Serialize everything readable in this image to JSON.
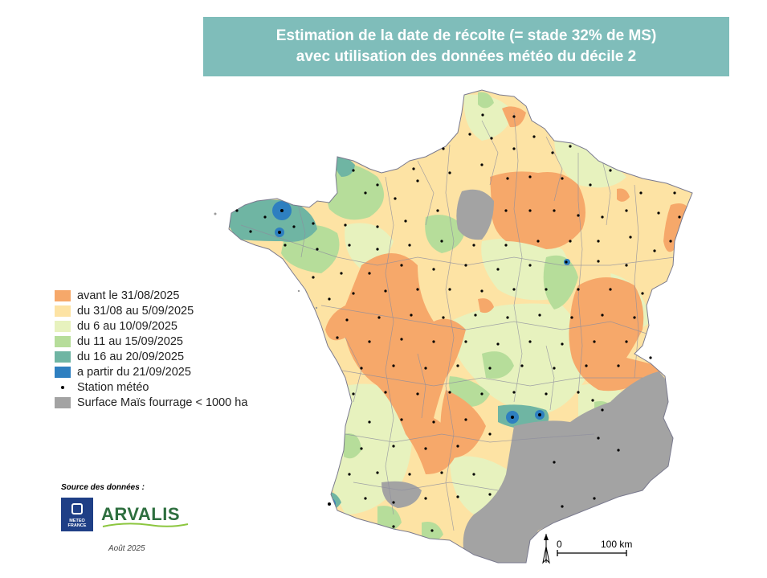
{
  "title": {
    "line1": "Estimation de la date de récolte (= stade 32% de MS)",
    "line2": "avec utilisation des données météo du décile 2"
  },
  "legend": [
    {
      "label": "avant le 31/08/2025",
      "color": "#f6a86a",
      "kind": "swatch"
    },
    {
      "label": "du 31/08 au 5/09/2025",
      "color": "#fde3a4",
      "kind": "swatch"
    },
    {
      "label": "du 6 au 10/09/2025",
      "color": "#e7f2be",
      "kind": "swatch"
    },
    {
      "label": "du 11 au 15/09/2025",
      "color": "#b6dd9a",
      "kind": "swatch"
    },
    {
      "label": "du 16 au 20/09/2025",
      "color": "#6fb5a3",
      "kind": "swatch"
    },
    {
      "label": "a partir du 21/09/2025",
      "color": "#2e7fc0",
      "kind": "swatch"
    },
    {
      "label": "Station météo",
      "color": "#000000",
      "kind": "dot"
    },
    {
      "label": "Surface Maïs fourrage < 1000 ha",
      "color": "#a3a3a3",
      "kind": "swatch"
    }
  ],
  "source": {
    "label": "Source des données :",
    "meteo_france": "METEO FRANCE",
    "arvalis": "ARVALIS",
    "date": "Août 2025"
  },
  "scale_bar": {
    "start": "0",
    "end": "100 km"
  },
  "compass": "north-arrow-icon"
}
